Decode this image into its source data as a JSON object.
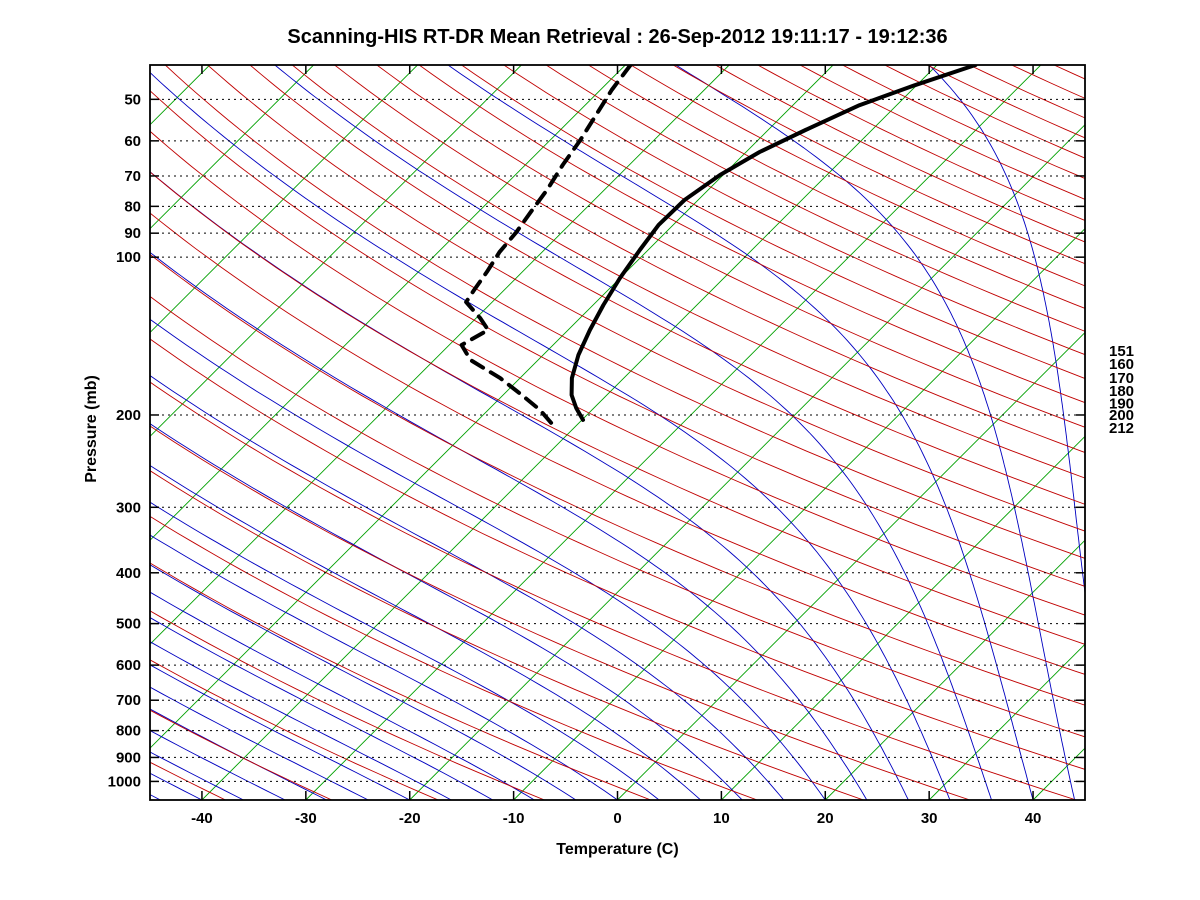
{
  "title": "Scanning-HIS RT-DR Mean Retrieval : 26-Sep-2012 19:11:17 - 19:12:36",
  "chart_data": {
    "type": "line",
    "variant": "skew-t-log-p-sounding",
    "title": "Scanning-HIS RT-DR Mean Retrieval : 26-Sep-2012 19:11:17 - 19:12:36",
    "xlabel": "Temperature (C)",
    "ylabel": "Pressure (mb)",
    "xlim": [
      -45,
      45
    ],
    "pressure_lim": [
      43,
      1085
    ],
    "skew_deg": 45,
    "grid": "horizontal dotted lines at labeled pressure levels",
    "x_ticks": [
      -40,
      -30,
      -20,
      -10,
      0,
      10,
      20,
      30,
      40
    ],
    "y_ticks": [
      50,
      60,
      70,
      80,
      90,
      100,
      200,
      300,
      400,
      500,
      600,
      700,
      800,
      900,
      1000
    ],
    "right_axis_labels": [
      151,
      160,
      170,
      180,
      190,
      200,
      212
    ],
    "series": [
      {
        "name": "temperature",
        "style": "solid",
        "color": "#000000",
        "width": 4,
        "points": [
          [
            43,
            -36.3
          ],
          [
            47,
            -40.2
          ],
          [
            51.3,
            -43.6
          ],
          [
            57.2,
            -46.4
          ],
          [
            63,
            -48.7
          ],
          [
            69.7,
            -50.3
          ],
          [
            77.8,
            -51.3
          ],
          [
            86.8,
            -51.4
          ],
          [
            96.9,
            -50.8
          ],
          [
            109.6,
            -50
          ],
          [
            123.4,
            -49
          ],
          [
            137.7,
            -47.9
          ],
          [
            153.7,
            -46.6
          ],
          [
            170.1,
            -45
          ],
          [
            183.2,
            -43.4
          ],
          [
            194,
            -41.7
          ],
          [
            204.4,
            -39.9
          ]
        ]
      },
      {
        "name": "dewpoint",
        "style": "dashed",
        "color": "#000000",
        "width": 4,
        "points": [
          [
            43,
            -69.5
          ],
          [
            48,
            -68.9
          ],
          [
            53.6,
            -68
          ],
          [
            59.8,
            -67.1
          ],
          [
            66.7,
            -66.4
          ],
          [
            74.5,
            -65.5
          ],
          [
            81.3,
            -65
          ],
          [
            89.6,
            -64.4
          ],
          [
            97.8,
            -64.1
          ],
          [
            106.7,
            -63.4
          ],
          [
            115.5,
            -62.9
          ],
          [
            121.8,
            -62.5
          ],
          [
            130.7,
            -59.6
          ],
          [
            137.7,
            -57.7
          ],
          [
            147.1,
            -58.8
          ],
          [
            157.1,
            -56.5
          ],
          [
            170.1,
            -51.9
          ],
          [
            183.2,
            -48.2
          ],
          [
            195.7,
            -45
          ],
          [
            209,
            -42.3
          ]
        ]
      }
    ],
    "background_lines": {
      "isotherms": {
        "color": "#00A000",
        "min": -110,
        "max": 40,
        "step": 10
      },
      "dry_adiabats": {
        "color": "#C00000",
        "theta_min": 220,
        "theta_max": 620,
        "step": 10,
        "kappa": 0.2854
      },
      "moist_adiabats": {
        "color": "#0000C0",
        "start_temp_min": -48,
        "start_temp_max": 72,
        "step": 4,
        "start_pressure": 1085
      }
    }
  }
}
